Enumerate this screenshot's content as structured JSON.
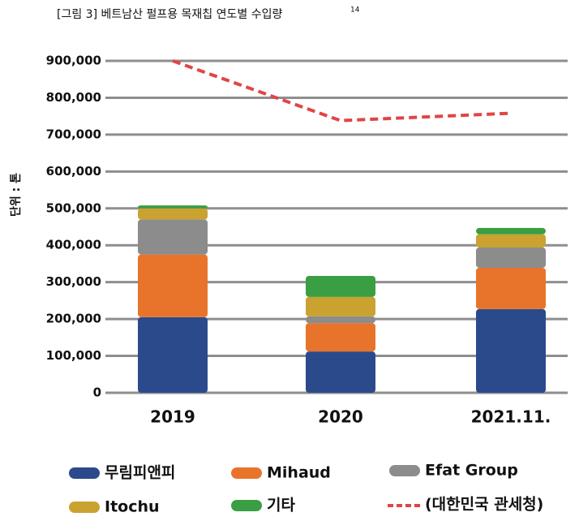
{
  "chart_data": {
    "type": "bar",
    "stacked": true,
    "title": "[그림 3] 베트남산 펄프용 목재칩 연도별 수입량",
    "title_footnote": "14",
    "y_label": "단위 : 톤",
    "categories": [
      "2019",
      "2020",
      "2021.11."
    ],
    "series": [
      {
        "name": "무림피앤피",
        "color": "#2b4a8c",
        "values": [
          205000,
          112000,
          227000
        ]
      },
      {
        "name": "Mihaud",
        "color": "#e8742c",
        "values": [
          170000,
          77000,
          112000
        ]
      },
      {
        "name": "Efat Group",
        "color": "#8c8c8c",
        "values": [
          95000,
          18000,
          55000
        ]
      },
      {
        "name": "Itochu",
        "color": "#c9a230",
        "values": [
          30000,
          53000,
          36000
        ]
      },
      {
        "name": "기타",
        "color": "#3a9e42",
        "values": [
          8000,
          57000,
          17000
        ]
      }
    ],
    "line": {
      "name": "(대한민국 관세청)",
      "color": "#e04545",
      "values": [
        900000,
        738000,
        758000
      ]
    },
    "ylim": [
      0,
      900000
    ],
    "yticks": [
      0,
      {
        "value": 100000,
        "label": "100,000"
      },
      {
        "value": 200000,
        "label": "200,000"
      },
      {
        "value": 300000,
        "label": "300,000"
      },
      {
        "value": 400000,
        "label": "400,000"
      },
      {
        "value": 500000,
        "label": "500,000"
      },
      {
        "value": 600000,
        "label": "600,000"
      },
      {
        "value": 700000,
        "label": "700,000"
      },
      {
        "value": 800000,
        "label": "800,000"
      },
      {
        "value": 900000,
        "label": "900,000"
      }
    ],
    "grid": true
  }
}
